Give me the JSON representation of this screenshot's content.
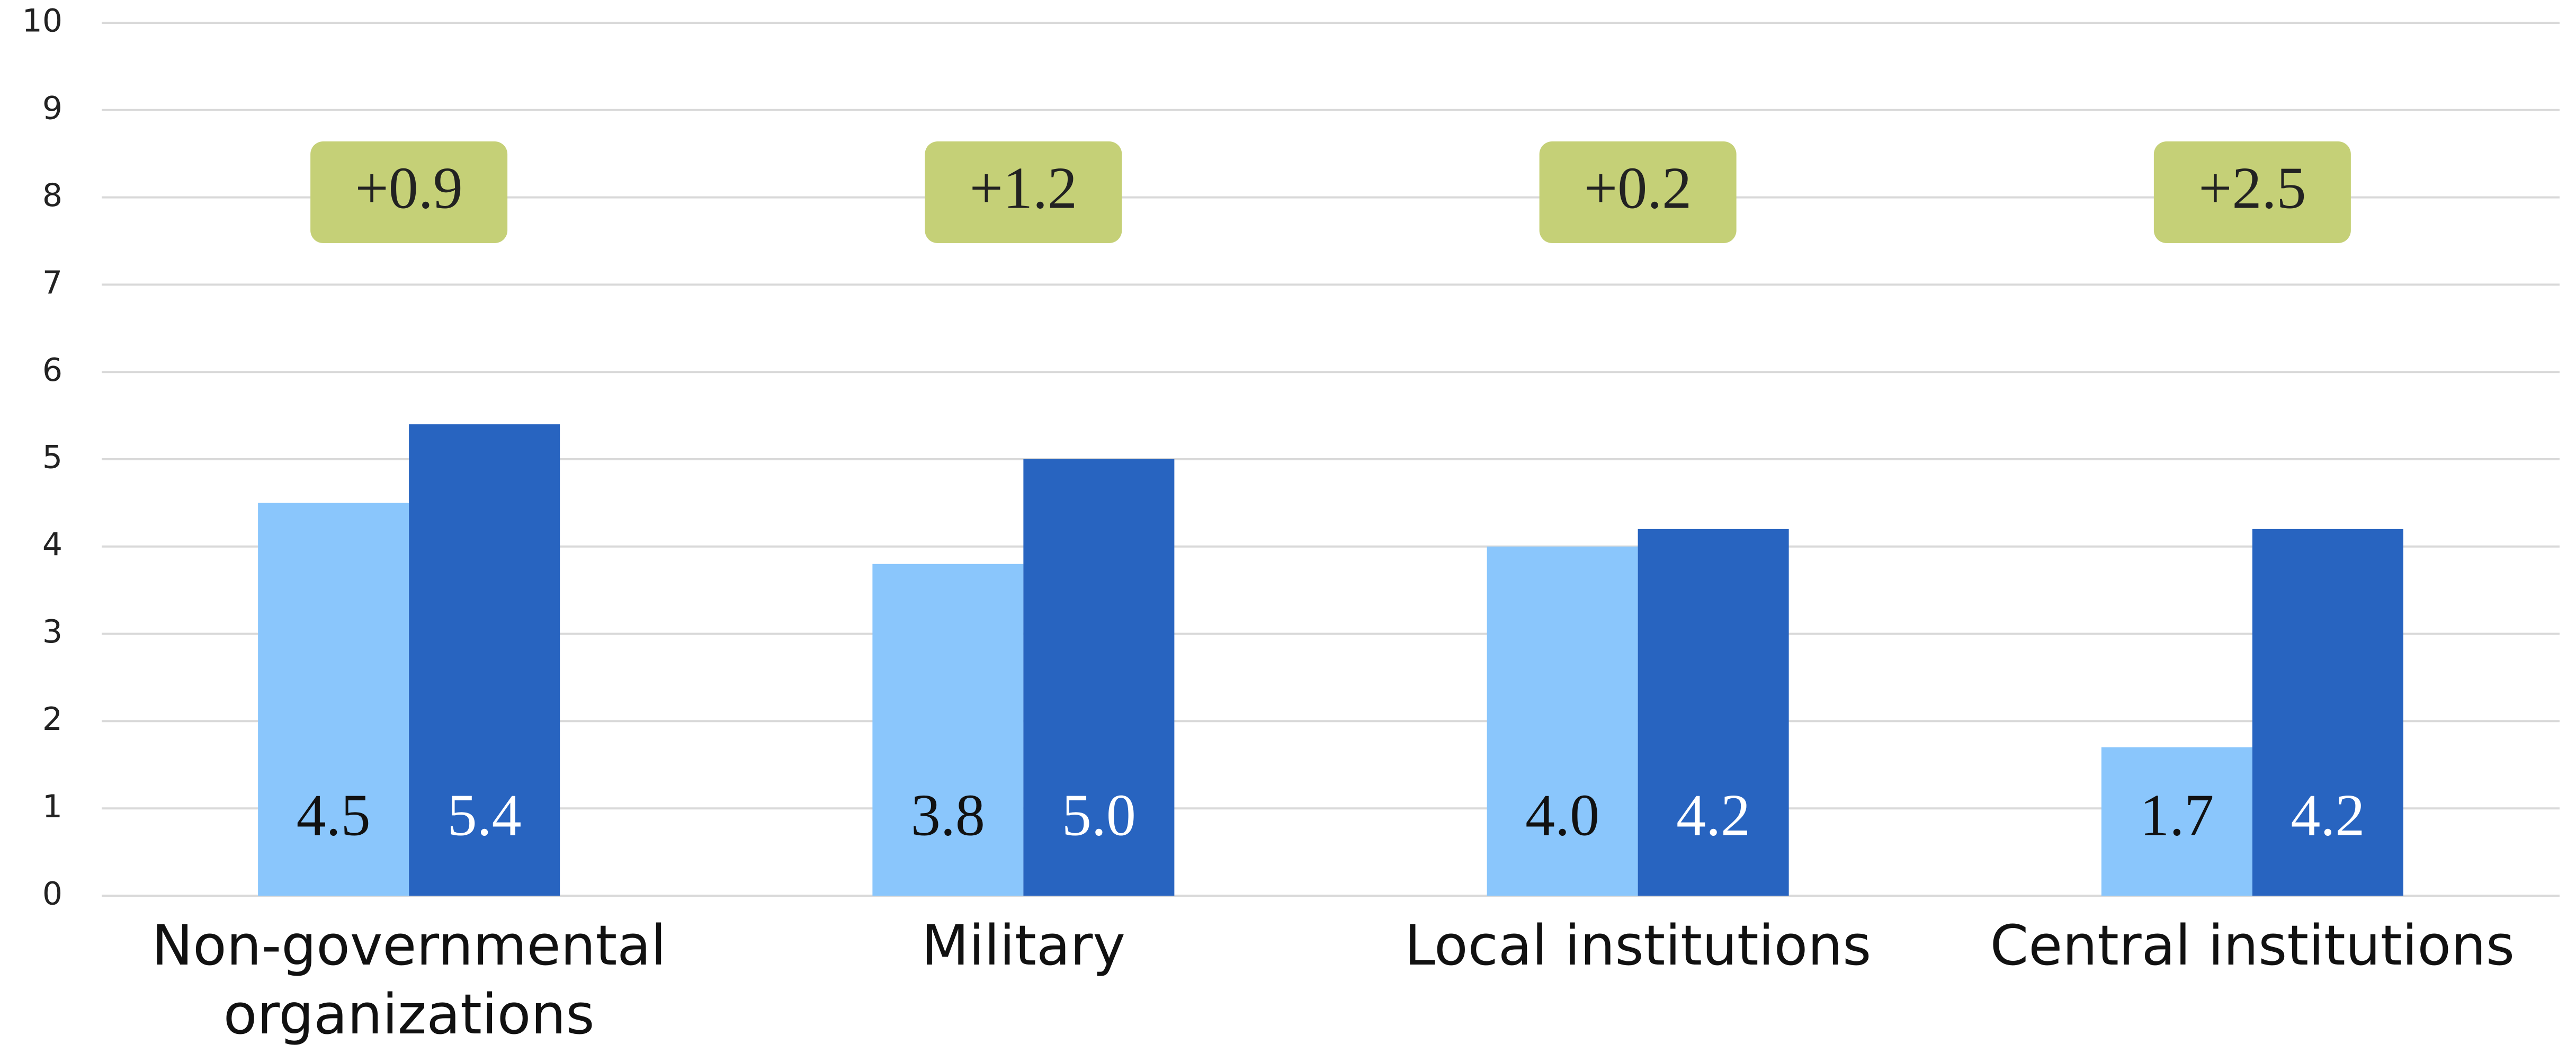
{
  "chart_data": {
    "type": "bar",
    "categories": [
      "Non-governmental organizations",
      "Military",
      "Local institutions",
      "Central institutions"
    ],
    "series": [
      {
        "color": "#8ac6fc",
        "values": [
          4.5,
          3.8,
          4.0,
          1.7
        ],
        "value_labels": [
          "4.5",
          "3.8",
          "4.0",
          "1.7"
        ]
      },
      {
        "color": "#2864c0",
        "values": [
          5.4,
          5.0,
          4.2,
          4.2
        ],
        "value_labels": [
          "5.4",
          "5.0",
          "4.2",
          "4.2"
        ]
      }
    ],
    "annotations": [
      "+0.9",
      "+1.2",
      "+0.2",
      "+2.5"
    ],
    "annotation_color": "#c5d077",
    "ylim": [
      0,
      10
    ],
    "yticks": [
      0,
      1,
      2,
      3,
      4,
      5,
      6,
      7,
      8,
      9,
      10
    ],
    "grid": true
  }
}
